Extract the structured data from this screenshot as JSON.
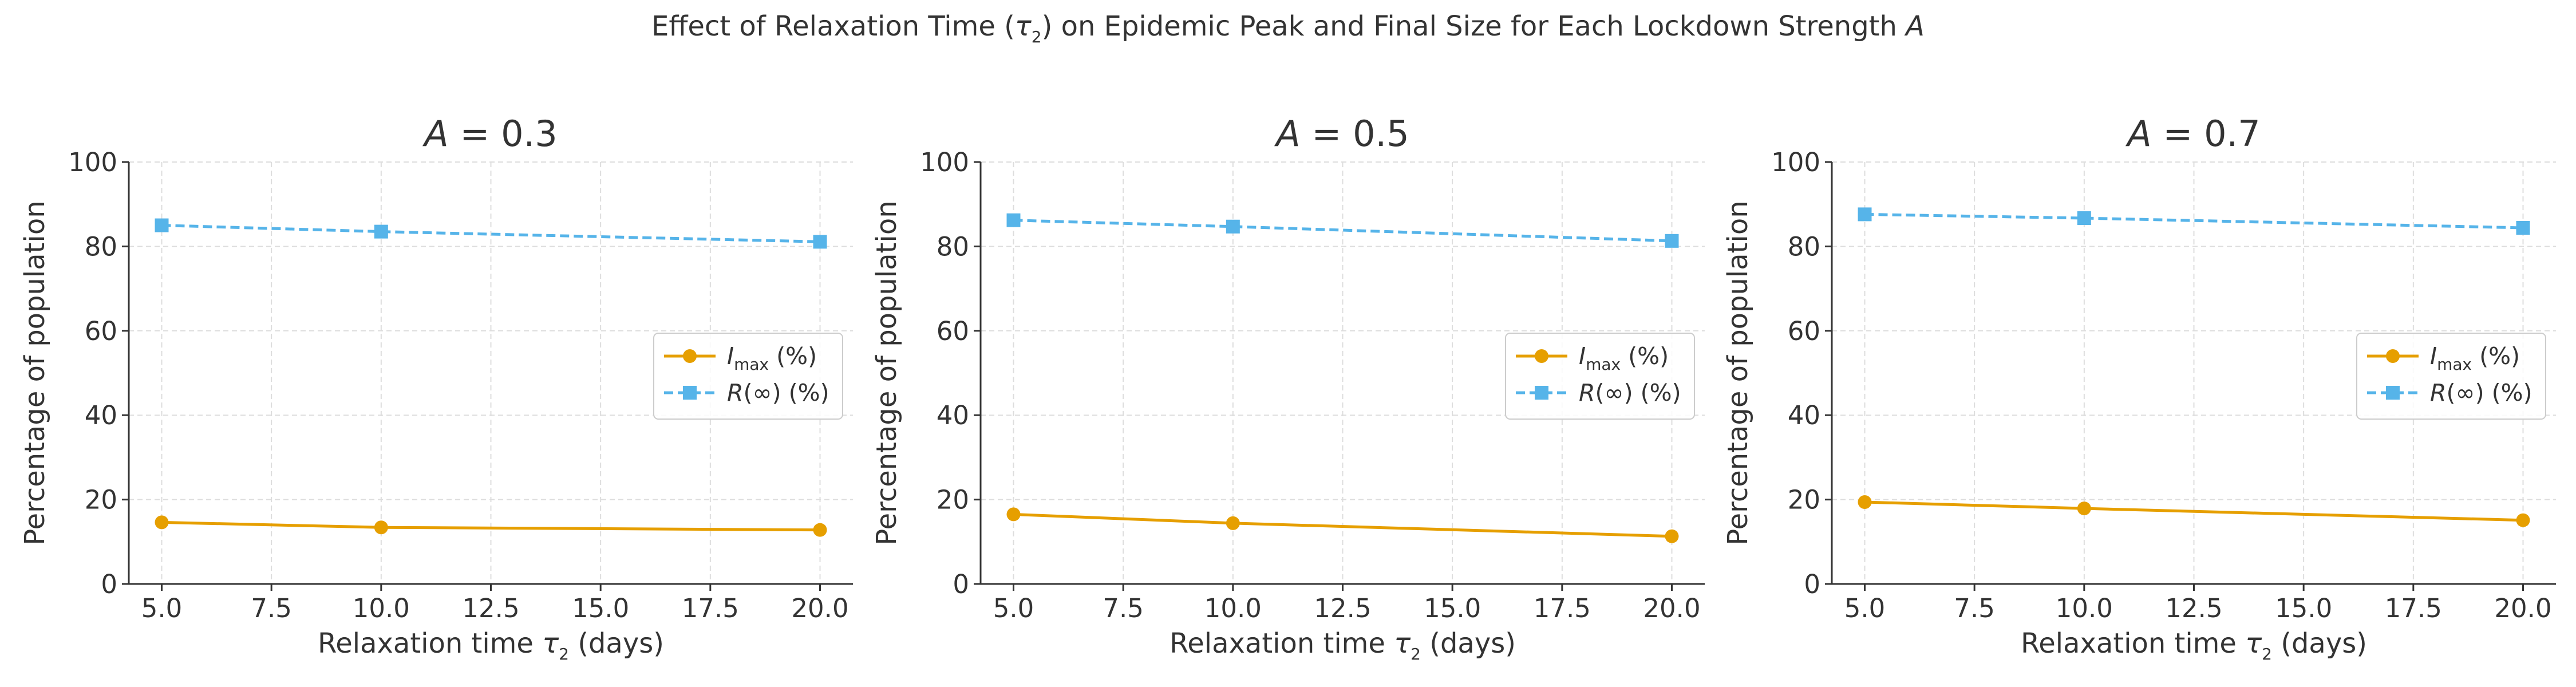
{
  "suptitle": {
    "pre": "Effect of Relaxation Time (",
    "sym": "τ",
    "sub": "2",
    "post": ") on Epidemic Peak and Final Size for Each Lockdown Strength ",
    "ital": "A"
  },
  "colors": {
    "imax": "#E69F00",
    "rinf": "#56B4E9",
    "axis": "#333333",
    "grid": "#dddddd"
  },
  "chart_data": [
    {
      "type": "line",
      "title": "A = 0.3",
      "xlabel": "Relaxation time τ2 (days)",
      "ylabel": "Percentage of population",
      "x": [
        5,
        10,
        20
      ],
      "xlim": [
        4.25,
        20.75
      ],
      "ylim": [
        0,
        100
      ],
      "xticks": [
        5.0,
        7.5,
        10.0,
        12.5,
        15.0,
        17.5,
        20.0
      ],
      "yticks": [
        0,
        20,
        40,
        60,
        80,
        100
      ],
      "grid": true,
      "legend": "center-right",
      "series": [
        {
          "name": "Imax (%)",
          "values": [
            14.6,
            13.4,
            12.8
          ],
          "color": "#E69F00",
          "marker": "circle",
          "dash": "solid"
        },
        {
          "name": "R(∞) (%)",
          "values": [
            85.0,
            83.5,
            81.1
          ],
          "color": "#56B4E9",
          "marker": "square",
          "dash": "dashed"
        }
      ]
    },
    {
      "type": "line",
      "title": "A = 0.5",
      "xlabel": "Relaxation time τ2 (days)",
      "ylabel": "Percentage of population",
      "x": [
        5,
        10,
        20
      ],
      "xlim": [
        4.25,
        20.75
      ],
      "ylim": [
        0,
        100
      ],
      "xticks": [
        5.0,
        7.5,
        10.0,
        12.5,
        15.0,
        17.5,
        20.0
      ],
      "yticks": [
        0,
        20,
        40,
        60,
        80,
        100
      ],
      "grid": true,
      "legend": "center-right",
      "series": [
        {
          "name": "Imax (%)",
          "values": [
            16.5,
            14.4,
            11.3
          ],
          "color": "#E69F00",
          "marker": "circle",
          "dash": "solid"
        },
        {
          "name": "R(∞) (%)",
          "values": [
            86.2,
            84.7,
            81.3
          ],
          "color": "#56B4E9",
          "marker": "square",
          "dash": "dashed"
        }
      ]
    },
    {
      "type": "line",
      "title": "A = 0.7",
      "xlabel": "Relaxation time τ2 (days)",
      "ylabel": "Percentage of population",
      "x": [
        5,
        10,
        20
      ],
      "xlim": [
        4.25,
        20.75
      ],
      "ylim": [
        0,
        100
      ],
      "xticks": [
        5.0,
        7.5,
        10.0,
        12.5,
        15.0,
        17.5,
        20.0
      ],
      "yticks": [
        0,
        20,
        40,
        60,
        80,
        100
      ],
      "grid": true,
      "legend": "center-right",
      "series": [
        {
          "name": "Imax (%)",
          "values": [
            19.4,
            17.9,
            15.1
          ],
          "color": "#E69F00",
          "marker": "circle",
          "dash": "solid"
        },
        {
          "name": "R(∞) (%)",
          "values": [
            87.6,
            86.7,
            84.4
          ],
          "color": "#56B4E9",
          "marker": "square",
          "dash": "dashed"
        }
      ]
    }
  ]
}
